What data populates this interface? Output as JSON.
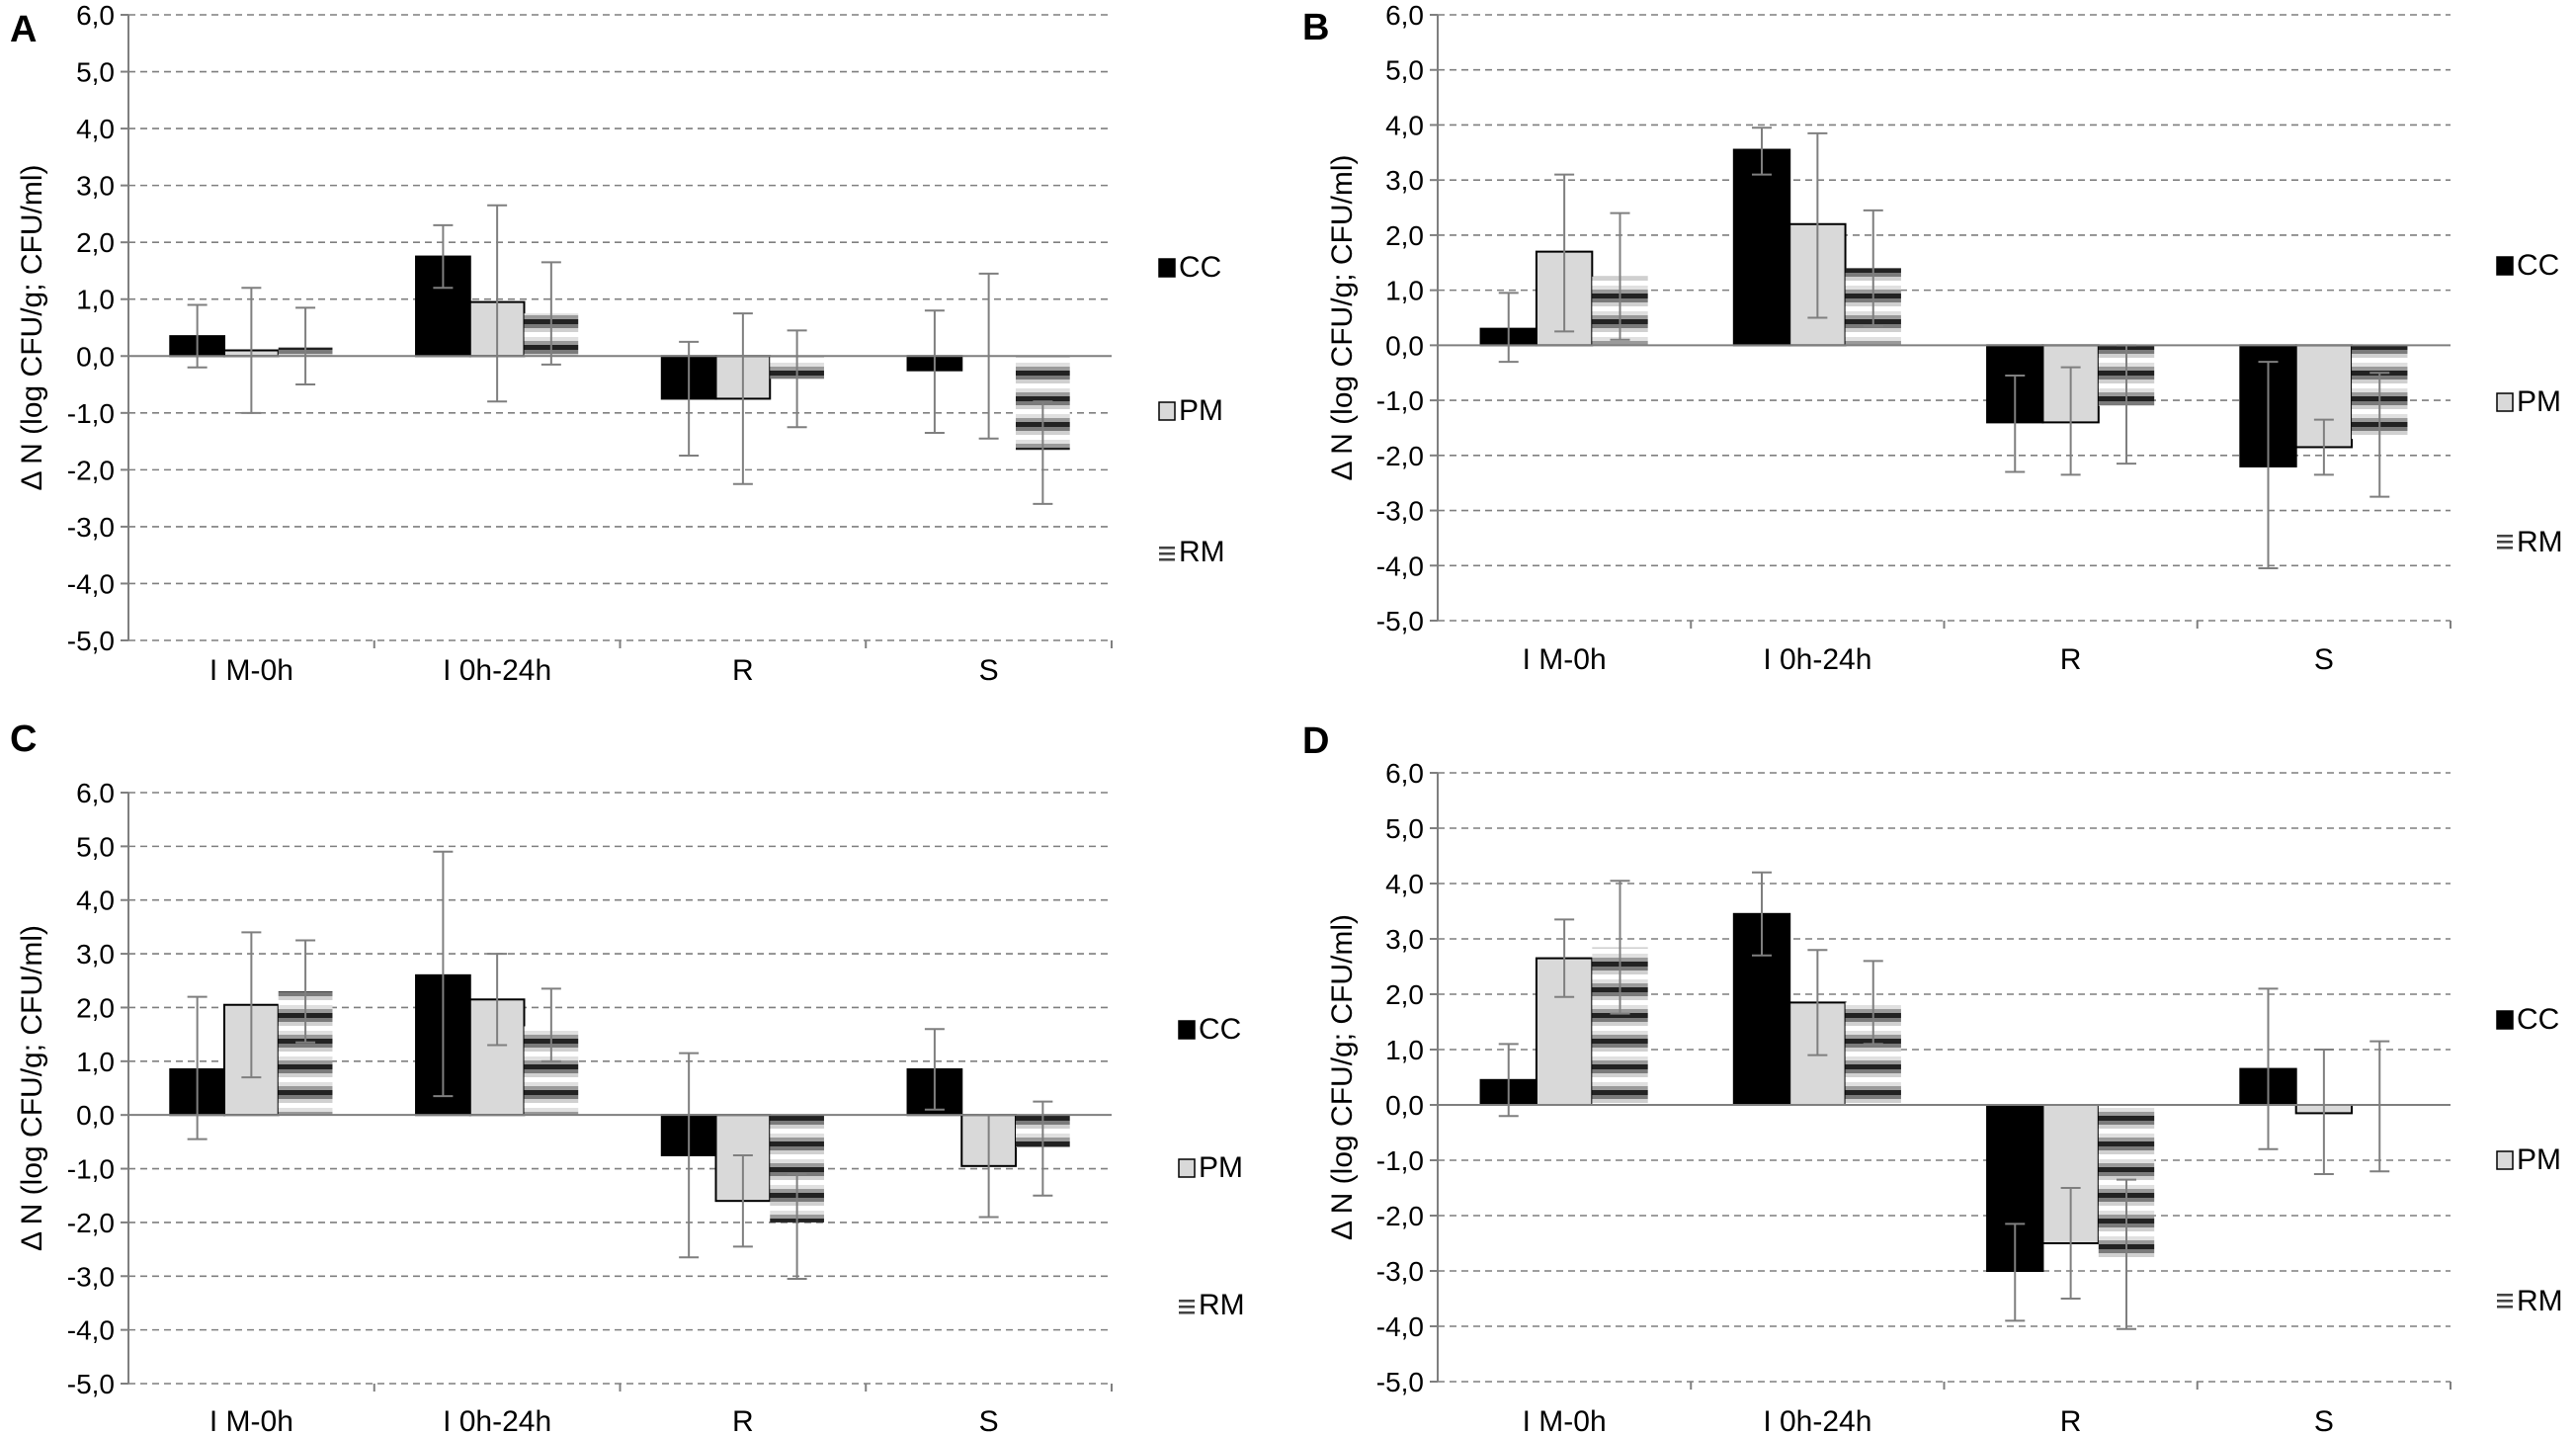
{
  "figure": {
    "colors": {
      "CC": "#000000",
      "PM": "#d9d9d9",
      "RM": "striped",
      "error_bar": "#7f7f7f",
      "grid": "#7f7f7f"
    }
  },
  "chart_data": [
    {
      "panel": "A",
      "type": "bar",
      "ylabel": "Δ N (log CFU/g; CFU/ml)",
      "ylim": [
        -5,
        6
      ],
      "yticks": [
        "6,0",
        "5,0",
        "4,0",
        "3,0",
        "2,0",
        "1,0",
        "0,0",
        "-1,0",
        "-2,0",
        "-3,0",
        "-4,0",
        "-5,0"
      ],
      "categories": [
        "I M-0h",
        "I 0h-24h",
        "R",
        "S"
      ],
      "legend": [
        "CC",
        "PM",
        "RM"
      ],
      "legend_position": "right",
      "series": [
        {
          "name": "CC",
          "values": [
            0.35,
            1.75,
            -0.75,
            -0.25
          ],
          "err_low": [
            -0.2,
            1.2,
            -1.75,
            -1.35
          ],
          "err_high": [
            0.9,
            2.3,
            0.25,
            0.8
          ]
        },
        {
          "name": "PM",
          "values": [
            0.1,
            0.95,
            -0.75,
            0.0
          ],
          "err_low": [
            -1.0,
            -0.8,
            -2.25,
            -1.45
          ],
          "err_high": [
            1.2,
            2.65,
            0.75,
            1.45
          ]
        },
        {
          "name": "RM",
          "values": [
            0.15,
            0.75,
            -0.4,
            -1.65
          ],
          "err_low": [
            -0.5,
            -0.15,
            -1.25,
            -2.6
          ],
          "err_high": [
            0.85,
            1.65,
            0.45,
            -0.8
          ]
        }
      ]
    },
    {
      "panel": "B",
      "type": "bar",
      "ylabel": "Δ N (log CFU/g; CFU/ml)",
      "ylim": [
        -5,
        6
      ],
      "yticks": [
        "6,0",
        "5,0",
        "4,0",
        "3,0",
        "2,0",
        "1,0",
        "0,0",
        "-1,0",
        "-2,0",
        "-3,0",
        "-4,0",
        "-5,0"
      ],
      "categories": [
        "I M-0h",
        "I 0h-24h",
        "R",
        "S"
      ],
      "legend": [
        "CC",
        "PM",
        "RM"
      ],
      "legend_position": "right",
      "series": [
        {
          "name": "CC",
          "values": [
            0.3,
            3.55,
            -1.4,
            -2.2
          ],
          "err_low": [
            -0.3,
            3.1,
            -2.3,
            -4.05
          ],
          "err_high": [
            0.95,
            3.95,
            -0.55,
            -0.3
          ]
        },
        {
          "name": "PM",
          "values": [
            1.7,
            2.2,
            -1.4,
            -1.85
          ],
          "err_low": [
            0.25,
            0.5,
            -2.35,
            -2.35
          ],
          "err_high": [
            3.1,
            3.85,
            -0.4,
            -1.35
          ]
        },
        {
          "name": "RM",
          "values": [
            1.25,
            1.4,
            -1.1,
            -1.7
          ],
          "err_low": [
            0.1,
            0.35,
            -2.15,
            -2.75
          ],
          "err_high": [
            2.4,
            2.45,
            0.0,
            -0.5
          ]
        }
      ]
    },
    {
      "panel": "C",
      "type": "bar",
      "ylabel": "Δ N (log CFU/g; CFU/ml)",
      "ylim": [
        -5,
        6
      ],
      "yticks": [
        "6,0",
        "5,0",
        "4,0",
        "3,0",
        "2,0",
        "1,0",
        "0,0",
        "-1,0",
        "-2,0",
        "-3,0",
        "-4,0",
        "-5,0"
      ],
      "categories": [
        "I M-0h",
        "I 0h-24h",
        "R",
        "S"
      ],
      "legend": [
        "CC",
        "PM",
        "RM"
      ],
      "legend_position": "right",
      "series": [
        {
          "name": "CC",
          "values": [
            0.85,
            2.6,
            -0.75,
            0.85
          ],
          "err_low": [
            -0.45,
            0.35,
            -2.65,
            0.1
          ],
          "err_high": [
            2.2,
            4.9,
            1.15,
            1.6
          ]
        },
        {
          "name": "PM",
          "values": [
            2.05,
            2.15,
            -1.6,
            -0.95
          ],
          "err_low": [
            0.7,
            1.3,
            -2.45,
            -1.9
          ],
          "err_high": [
            3.4,
            3.0,
            -0.75,
            0.0
          ]
        },
        {
          "name": "RM",
          "values": [
            2.3,
            1.65,
            -2.0,
            -0.6
          ],
          "err_low": [
            1.35,
            1.0,
            -3.05,
            -1.5
          ],
          "err_high": [
            3.25,
            2.35,
            -1.1,
            0.25
          ]
        }
      ]
    },
    {
      "panel": "D",
      "type": "bar",
      "ylabel": "Δ N (log CFU/g; CFU/ml)",
      "ylim": [
        -5,
        6
      ],
      "yticks": [
        "6,0",
        "5,0",
        "4,0",
        "3,0",
        "2,0",
        "1,0",
        "0,0",
        "-1,0",
        "-2,0",
        "-3,0",
        "-4,0",
        "-5,0"
      ],
      "categories": [
        "I M-0h",
        "I 0h-24h",
        "R",
        "S"
      ],
      "legend": [
        "CC",
        "PM",
        "RM"
      ],
      "legend_position": "right",
      "series": [
        {
          "name": "CC",
          "values": [
            0.45,
            3.45,
            -3.0,
            0.65
          ],
          "err_low": [
            -0.2,
            2.7,
            -3.9,
            -0.8
          ],
          "err_high": [
            1.1,
            4.2,
            -2.15,
            2.1
          ]
        },
        {
          "name": "PM",
          "values": [
            2.65,
            1.85,
            -2.5,
            -0.15
          ],
          "err_low": [
            1.95,
            0.9,
            -3.5,
            -1.25
          ],
          "err_high": [
            3.35,
            2.8,
            -1.5,
            1.0
          ]
        },
        {
          "name": "RM",
          "values": [
            2.85,
            1.85,
            -2.75,
            0.0
          ],
          "err_low": [
            1.65,
            1.1,
            -4.05,
            -1.2
          ],
          "err_high": [
            4.05,
            2.6,
            -1.35,
            1.15
          ]
        }
      ]
    }
  ]
}
